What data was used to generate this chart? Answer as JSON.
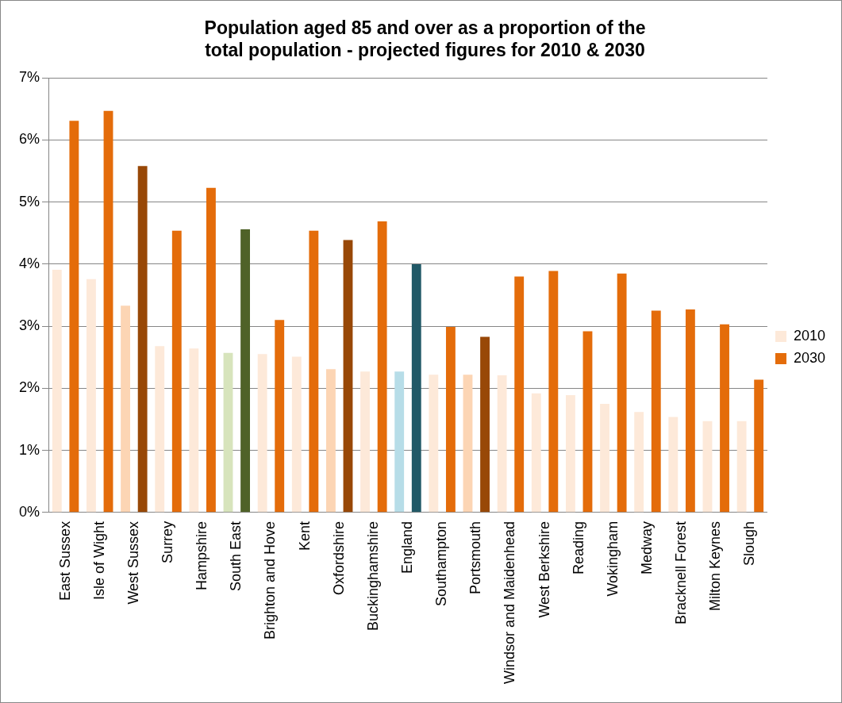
{
  "chart_data": {
    "type": "bar",
    "title": "Population aged 85 and over as a proportion of the total population - projected figures for 2010 & 2030",
    "categories": [
      "East Sussex",
      "Isle of Wight",
      "West Sussex",
      "Surrey",
      "Hampshire",
      "South East",
      "Brighton and Hove",
      "Kent",
      "Oxfordshire",
      "Buckinghamshire",
      "England",
      "Southampton",
      "Portsmouth",
      "Windsor and Maidenhead",
      "West Berkshire",
      "Reading",
      "Wokingham",
      "Medway",
      "Bracknell Forest",
      "Milton Keynes",
      "Slough"
    ],
    "series": [
      {
        "name": "2010",
        "color": "#fde9d9",
        "colors": [
          "#fde9d9",
          "#fde9d9",
          "#fcd5b4",
          "#fde9d9",
          "#fde9d9",
          "#d7e4bc",
          "#fde9d9",
          "#fde9d9",
          "#fcd5b4",
          "#fde9d9",
          "#b7dde8",
          "#fde9d9",
          "#fcd5b4",
          "#fde9d9",
          "#fde9d9",
          "#fde9d9",
          "#fde9d9",
          "#fde9d9",
          "#fde9d9",
          "#fde9d9",
          "#fde9d9"
        ],
        "values": [
          3.91,
          3.76,
          3.33,
          2.68,
          2.64,
          2.57,
          2.55,
          2.51,
          2.31,
          2.27,
          2.27,
          2.22,
          2.22,
          2.21,
          1.92,
          1.89,
          1.75,
          1.62,
          1.54,
          1.47,
          1.47
        ]
      },
      {
        "name": "2030",
        "color": "#e46c0a",
        "colors": [
          "#e46c0a",
          "#e46c0a",
          "#984807",
          "#e46c0a",
          "#e46c0a",
          "#4f6228",
          "#e46c0a",
          "#e46c0a",
          "#984807",
          "#e46c0a",
          "#215967",
          "#e46c0a",
          "#984807",
          "#e46c0a",
          "#e46c0a",
          "#e46c0a",
          "#e46c0a",
          "#e46c0a",
          "#e46c0a",
          "#e46c0a",
          "#e46c0a"
        ],
        "values": [
          6.31,
          6.47,
          5.58,
          4.54,
          5.23,
          4.56,
          3.1,
          4.54,
          4.39,
          4.69,
          4.0,
          2.99,
          2.83,
          3.8,
          3.89,
          2.92,
          3.85,
          3.25,
          3.27,
          3.03,
          2.14
        ]
      }
    ],
    "ylim": [
      0,
      7
    ],
    "yticks": [
      {
        "value": 0,
        "label": "0%"
      },
      {
        "value": 1,
        "label": "1%"
      },
      {
        "value": 2,
        "label": "2%"
      },
      {
        "value": 3,
        "label": "3%"
      },
      {
        "value": 4,
        "label": "4%"
      },
      {
        "value": 5,
        "label": "5%"
      },
      {
        "value": 6,
        "label": "6%"
      },
      {
        "value": 7,
        "label": "7%"
      }
    ],
    "grid": "y",
    "legend": "right"
  }
}
